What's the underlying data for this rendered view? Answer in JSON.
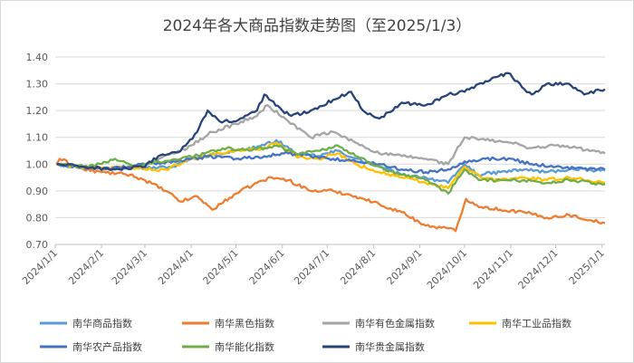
{
  "chart_data": {
    "type": "line",
    "title": "2024年各大商品指数走势图（至2025/1/3）",
    "xlabel": "",
    "ylabel": "",
    "ylim": [
      0.7,
      1.4
    ],
    "yticks": [
      "0.70",
      "0.80",
      "0.90",
      "1.00",
      "1.10",
      "1.20",
      "1.30",
      "1.40"
    ],
    "x_range": [
      "2024-01-01",
      "2025-01-03"
    ],
    "xticks": [
      "2024/1/1",
      "2024/2/1",
      "2024/3/1",
      "2024/4/1",
      "2024/5/1",
      "2024/6/1",
      "2024/7/1",
      "2024/8/1",
      "2024/9/1",
      "2024/10/1",
      "2024/11/1",
      "2024/12/1",
      "2025/1/1"
    ],
    "grid": "horizontal",
    "legend": "bottom",
    "series": [
      {
        "name": "南华商品指数",
        "color": "#5B9BD5",
        "points": [
          [
            "2024-01-02",
            1.0
          ],
          [
            "2024-01-15",
            0.99
          ],
          [
            "2024-02-01",
            0.985
          ],
          [
            "2024-02-20",
            0.99
          ],
          [
            "2024-03-01",
            0.985
          ],
          [
            "2024-03-20",
            0.99
          ],
          [
            "2024-04-01",
            1.02
          ],
          [
            "2024-04-20",
            1.04
          ],
          [
            "2024-05-01",
            1.05
          ],
          [
            "2024-05-20",
            1.07
          ],
          [
            "2024-05-28",
            1.09
          ],
          [
            "2024-06-10",
            1.04
          ],
          [
            "2024-06-25",
            1.03
          ],
          [
            "2024-07-08",
            1.05
          ],
          [
            "2024-07-20",
            1.02
          ],
          [
            "2024-08-05",
            0.99
          ],
          [
            "2024-08-20",
            0.96
          ],
          [
            "2024-09-05",
            0.95
          ],
          [
            "2024-09-20",
            0.93
          ],
          [
            "2024-10-01",
            1.0
          ],
          [
            "2024-10-10",
            0.96
          ],
          [
            "2024-10-25",
            0.97
          ],
          [
            "2024-11-10",
            0.98
          ],
          [
            "2024-11-25",
            0.97
          ],
          [
            "2024-12-10",
            0.98
          ],
          [
            "2025-01-03",
            0.975
          ]
        ]
      },
      {
        "name": "南华黑色指数",
        "color": "#ED7D31",
        "points": [
          [
            "2024-01-02",
            1.0
          ],
          [
            "2024-01-04",
            1.02
          ],
          [
            "2024-01-20",
            0.98
          ],
          [
            "2024-02-01",
            0.97
          ],
          [
            "2024-02-20",
            0.96
          ],
          [
            "2024-03-01",
            0.94
          ],
          [
            "2024-03-15",
            0.9
          ],
          [
            "2024-03-25",
            0.86
          ],
          [
            "2024-04-05",
            0.88
          ],
          [
            "2024-04-15",
            0.83
          ],
          [
            "2024-05-01",
            0.89
          ],
          [
            "2024-05-15",
            0.93
          ],
          [
            "2024-05-25",
            0.95
          ],
          [
            "2024-06-05",
            0.94
          ],
          [
            "2024-06-20",
            0.9
          ],
          [
            "2024-07-05",
            0.9
          ],
          [
            "2024-07-20",
            0.88
          ],
          [
            "2024-08-05",
            0.85
          ],
          [
            "2024-08-20",
            0.82
          ],
          [
            "2024-09-05",
            0.77
          ],
          [
            "2024-09-20",
            0.76
          ],
          [
            "2024-09-25",
            0.75
          ],
          [
            "2024-10-02",
            0.87
          ],
          [
            "2024-10-12",
            0.84
          ],
          [
            "2024-10-25",
            0.83
          ],
          [
            "2024-11-10",
            0.82
          ],
          [
            "2024-11-25",
            0.8
          ],
          [
            "2024-12-10",
            0.81
          ],
          [
            "2024-12-25",
            0.79
          ],
          [
            "2025-01-03",
            0.78
          ]
        ]
      },
      {
        "name": "南华有色金属指数",
        "color": "#A5A5A5",
        "points": [
          [
            "2024-01-02",
            1.0
          ],
          [
            "2024-01-15",
            0.99
          ],
          [
            "2024-02-01",
            0.98
          ],
          [
            "2024-02-20",
            0.99
          ],
          [
            "2024-03-01",
            1.0
          ],
          [
            "2024-03-20",
            1.04
          ],
          [
            "2024-04-01",
            1.07
          ],
          [
            "2024-04-15",
            1.12
          ],
          [
            "2024-05-01",
            1.15
          ],
          [
            "2024-05-15",
            1.18
          ],
          [
            "2024-05-22",
            1.22
          ],
          [
            "2024-06-05",
            1.16
          ],
          [
            "2024-06-20",
            1.1
          ],
          [
            "2024-07-05",
            1.12
          ],
          [
            "2024-07-20",
            1.08
          ],
          [
            "2024-08-05",
            1.04
          ],
          [
            "2024-08-20",
            1.03
          ],
          [
            "2024-09-05",
            1.02
          ],
          [
            "2024-09-20",
            1.0
          ],
          [
            "2024-10-01",
            1.1
          ],
          [
            "2024-10-15",
            1.09
          ],
          [
            "2024-11-01",
            1.08
          ],
          [
            "2024-11-15",
            1.06
          ],
          [
            "2024-12-01",
            1.07
          ],
          [
            "2024-12-15",
            1.06
          ],
          [
            "2025-01-03",
            1.04
          ]
        ]
      },
      {
        "name": "南华工业品指数",
        "color": "#FFC000",
        "points": [
          [
            "2024-01-02",
            1.0
          ],
          [
            "2024-01-15",
            0.99
          ],
          [
            "2024-02-01",
            0.985
          ],
          [
            "2024-02-20",
            0.99
          ],
          [
            "2024-03-01",
            0.98
          ],
          [
            "2024-03-15",
            0.98
          ],
          [
            "2024-04-01",
            1.02
          ],
          [
            "2024-04-20",
            1.04
          ],
          [
            "2024-05-01",
            1.05
          ],
          [
            "2024-05-20",
            1.06
          ],
          [
            "2024-05-28",
            1.08
          ],
          [
            "2024-06-10",
            1.03
          ],
          [
            "2024-06-25",
            1.02
          ],
          [
            "2024-07-08",
            1.04
          ],
          [
            "2024-07-20",
            1.0
          ],
          [
            "2024-08-05",
            0.97
          ],
          [
            "2024-08-20",
            0.95
          ],
          [
            "2024-09-05",
            0.93
          ],
          [
            "2024-09-20",
            0.91
          ],
          [
            "2024-10-01",
            0.99
          ],
          [
            "2024-10-12",
            0.95
          ],
          [
            "2024-10-25",
            0.94
          ],
          [
            "2024-11-10",
            0.95
          ],
          [
            "2024-11-25",
            0.94
          ],
          [
            "2024-12-10",
            0.95
          ],
          [
            "2025-01-03",
            0.93
          ]
        ]
      },
      {
        "name": "南华农产品指数",
        "color": "#4472C4",
        "points": [
          [
            "2024-01-02",
            1.0
          ],
          [
            "2024-01-20",
            0.99
          ],
          [
            "2024-02-01",
            0.98
          ],
          [
            "2024-02-20",
            0.99
          ],
          [
            "2024-03-01",
            1.0
          ],
          [
            "2024-03-20",
            1.01
          ],
          [
            "2024-04-01",
            1.02
          ],
          [
            "2024-04-20",
            1.03
          ],
          [
            "2024-05-01",
            1.02
          ],
          [
            "2024-05-20",
            1.03
          ],
          [
            "2024-06-05",
            1.04
          ],
          [
            "2024-06-20",
            1.03
          ],
          [
            "2024-07-05",
            1.02
          ],
          [
            "2024-07-20",
            1.01
          ],
          [
            "2024-08-05",
            1.0
          ],
          [
            "2024-08-20",
            0.98
          ],
          [
            "2024-09-05",
            0.97
          ],
          [
            "2024-09-20",
            0.98
          ],
          [
            "2024-10-01",
            1.01
          ],
          [
            "2024-10-15",
            1.02
          ],
          [
            "2024-11-01",
            1.02
          ],
          [
            "2024-11-15",
            1.0
          ],
          [
            "2024-12-01",
            0.99
          ],
          [
            "2024-12-15",
            0.985
          ],
          [
            "2025-01-03",
            0.98
          ]
        ]
      },
      {
        "name": "南华能化指数",
        "color": "#70AD47",
        "points": [
          [
            "2024-01-02",
            1.0
          ],
          [
            "2024-01-20",
            0.99
          ],
          [
            "2024-02-01",
            1.0
          ],
          [
            "2024-02-10",
            1.02
          ],
          [
            "2024-02-25",
            0.99
          ],
          [
            "2024-03-10",
            1.01
          ],
          [
            "2024-03-25",
            1.02
          ],
          [
            "2024-04-10",
            1.04
          ],
          [
            "2024-04-25",
            1.06
          ],
          [
            "2024-05-10",
            1.05
          ],
          [
            "2024-05-28",
            1.07
          ],
          [
            "2024-06-10",
            1.04
          ],
          [
            "2024-06-25",
            1.05
          ],
          [
            "2024-07-08",
            1.07
          ],
          [
            "2024-07-20",
            1.03
          ],
          [
            "2024-08-05",
            0.99
          ],
          [
            "2024-08-20",
            0.96
          ],
          [
            "2024-09-05",
            0.94
          ],
          [
            "2024-09-20",
            0.89
          ],
          [
            "2024-10-01",
            0.98
          ],
          [
            "2024-10-12",
            0.94
          ],
          [
            "2024-10-25",
            0.94
          ],
          [
            "2024-11-10",
            0.94
          ],
          [
            "2024-11-25",
            0.93
          ],
          [
            "2024-12-10",
            0.94
          ],
          [
            "2025-01-03",
            0.925
          ]
        ]
      },
      {
        "name": "南华贵金属指数",
        "color": "#264478",
        "points": [
          [
            "2024-01-02",
            1.0
          ],
          [
            "2024-01-20",
            0.99
          ],
          [
            "2024-02-10",
            0.98
          ],
          [
            "2024-03-01",
            0.99
          ],
          [
            "2024-03-10",
            1.03
          ],
          [
            "2024-03-25",
            1.05
          ],
          [
            "2024-04-05",
            1.12
          ],
          [
            "2024-04-12",
            1.2
          ],
          [
            "2024-04-20",
            1.16
          ],
          [
            "2024-05-01",
            1.16
          ],
          [
            "2024-05-15",
            1.2
          ],
          [
            "2024-05-20",
            1.26
          ],
          [
            "2024-06-01",
            1.2
          ],
          [
            "2024-06-07",
            1.18
          ],
          [
            "2024-06-20",
            1.2
          ],
          [
            "2024-07-05",
            1.24
          ],
          [
            "2024-07-17",
            1.27
          ],
          [
            "2024-07-25",
            1.2
          ],
          [
            "2024-08-05",
            1.17
          ],
          [
            "2024-08-20",
            1.23
          ],
          [
            "2024-09-05",
            1.22
          ],
          [
            "2024-09-20",
            1.26
          ],
          [
            "2024-10-01",
            1.27
          ],
          [
            "2024-10-15",
            1.31
          ],
          [
            "2024-10-30",
            1.34
          ],
          [
            "2024-11-10",
            1.28
          ],
          [
            "2024-11-15",
            1.26
          ],
          [
            "2024-11-25",
            1.3
          ],
          [
            "2024-12-10",
            1.3
          ],
          [
            "2024-12-20",
            1.26
          ],
          [
            "2025-01-03",
            1.28
          ]
        ]
      }
    ]
  }
}
